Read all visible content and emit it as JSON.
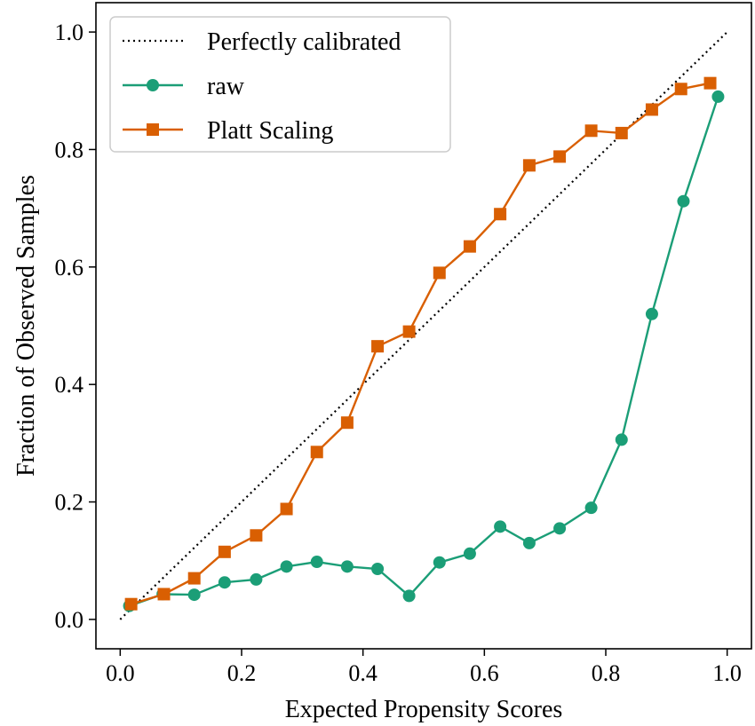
{
  "chart_data": {
    "type": "line",
    "title": "",
    "xlabel": "Expected Propensity Scores",
    "ylabel": "Fraction of Observed Samples",
    "xlim": [
      -0.04,
      1.04
    ],
    "ylim": [
      -0.05,
      1.05
    ],
    "xticks": [
      "0.0",
      "0.2",
      "0.4",
      "0.6",
      "0.8",
      "1.0"
    ],
    "yticks": [
      "0.0",
      "0.2",
      "0.4",
      "0.6",
      "0.8",
      "1.0"
    ],
    "grid": false,
    "legend_position": "top-left",
    "series": [
      {
        "name": "Perfectly calibrated",
        "style": "dotted",
        "marker": "none",
        "color": "#000000",
        "x": [
          0.0,
          1.0
        ],
        "y": [
          0.0,
          1.0
        ]
      },
      {
        "name": "raw",
        "style": "solid",
        "marker": "circle",
        "color": "#1b9e77",
        "x": [
          0.015,
          0.07,
          0.122,
          0.172,
          0.224,
          0.274,
          0.324,
          0.374,
          0.424,
          0.476,
          0.526,
          0.576,
          0.626,
          0.674,
          0.724,
          0.776,
          0.826,
          0.876,
          0.928,
          0.985
        ],
        "y": [
          0.023,
          0.043,
          0.042,
          0.063,
          0.068,
          0.09,
          0.098,
          0.09,
          0.086,
          0.04,
          0.097,
          0.112,
          0.158,
          0.13,
          0.155,
          0.19,
          0.306,
          0.52,
          0.712,
          0.89
        ]
      },
      {
        "name": "Platt Scaling",
        "style": "solid",
        "marker": "square",
        "color": "#d95f02",
        "x": [
          0.018,
          0.072,
          0.122,
          0.172,
          0.224,
          0.274,
          0.324,
          0.374,
          0.424,
          0.476,
          0.526,
          0.576,
          0.626,
          0.674,
          0.724,
          0.776,
          0.826,
          0.876,
          0.924,
          0.972
        ],
        "y": [
          0.026,
          0.043,
          0.07,
          0.115,
          0.143,
          0.188,
          0.285,
          0.335,
          0.465,
          0.49,
          0.59,
          0.635,
          0.69,
          0.773,
          0.788,
          0.832,
          0.828,
          0.868,
          0.903,
          0.913
        ]
      }
    ]
  }
}
